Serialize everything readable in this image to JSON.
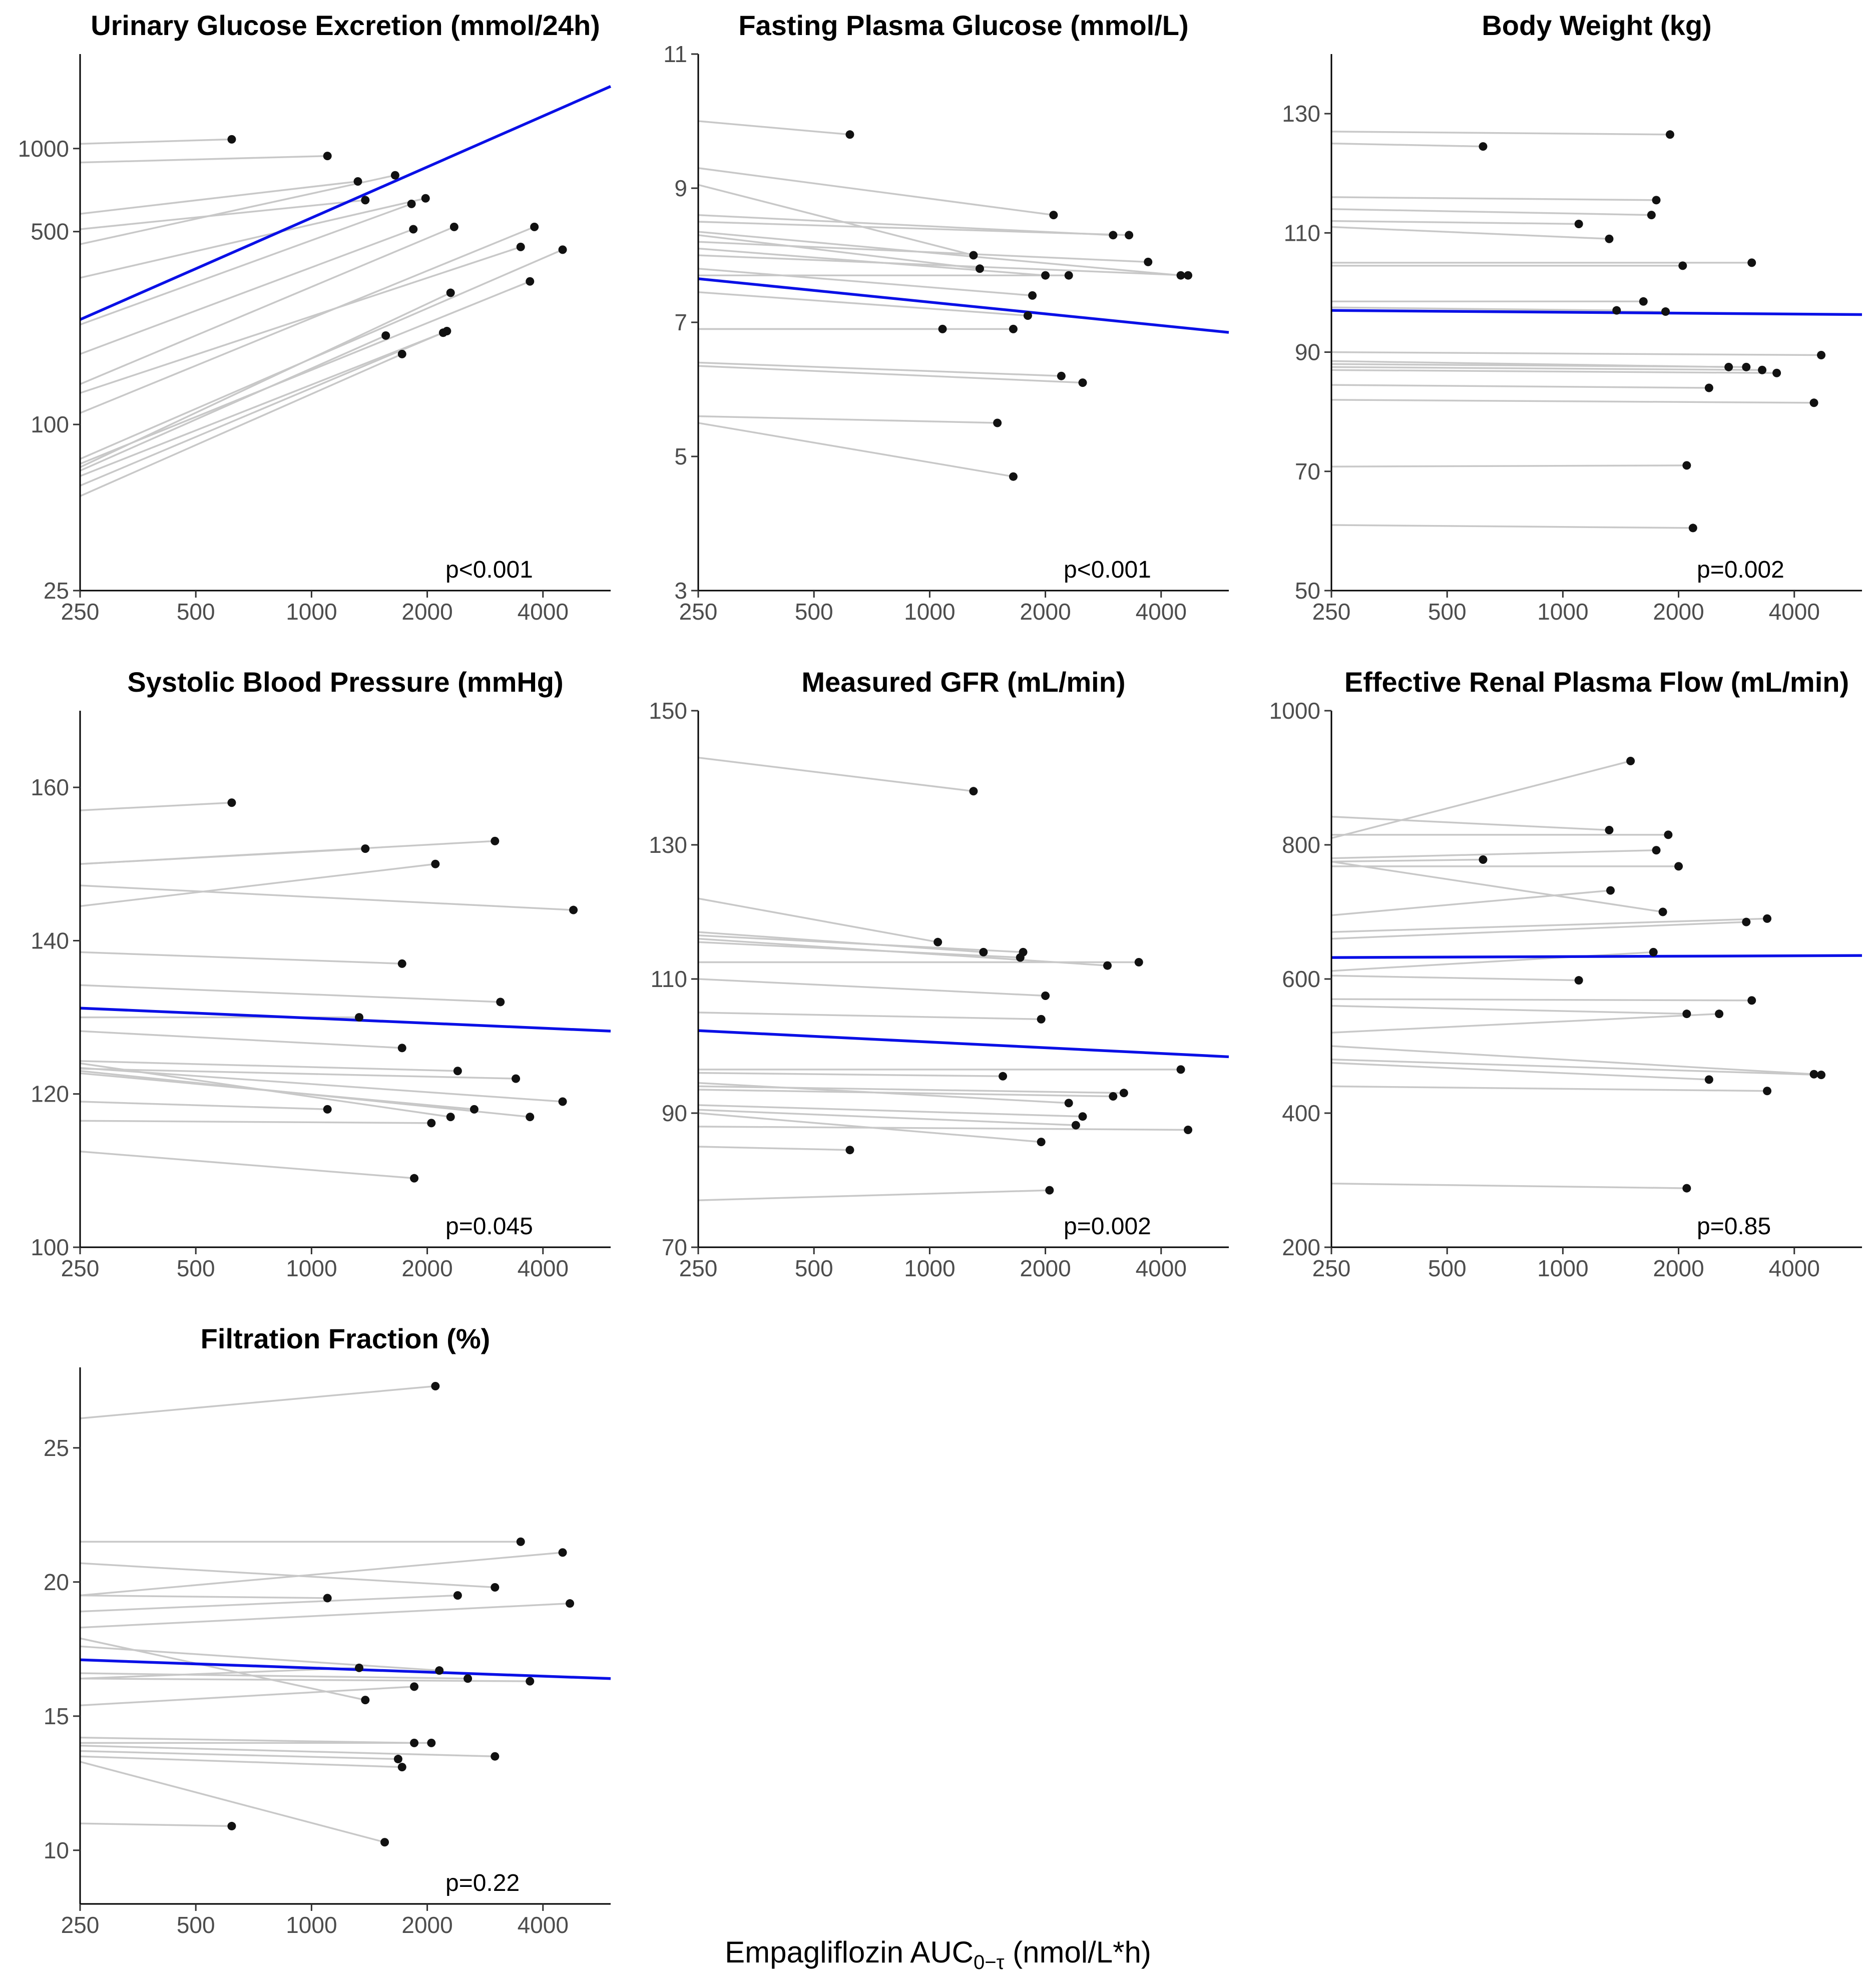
{
  "x_axis_label": {
    "prefix": "Empagliflozin AUC",
    "subscript": "0−τ",
    "suffix": " (nmol/L*h)"
  },
  "colors": {
    "regression": "#0a10e6",
    "paired_line": "#c8c8c8",
    "point": "#111111"
  },
  "chart_data": [
    {
      "type": "scatter",
      "title": "Urinary Glucose Excretion (mmol/24h)",
      "y_scale": "log",
      "ylim": [
        25,
        2200
      ],
      "yticks": [
        25,
        100,
        500,
        1000
      ],
      "xlim": [
        250,
        6000
      ],
      "xticks": [
        250,
        500,
        1000,
        2000,
        4000
      ],
      "p_value": "p<0.001",
      "regression": [
        [
          250,
          240
        ],
        [
          6000,
          1680
        ]
      ],
      "pairs": [
        [
          1040,
          620,
          1080
        ],
        [
          890,
          1100,
          940
        ],
        [
          580,
          1320,
          760
        ],
        [
          450,
          1650,
          800
        ],
        [
          510,
          1380,
          650
        ],
        [
          340,
          1980,
          660
        ],
        [
          230,
          1820,
          630
        ],
        [
          180,
          1840,
          510
        ],
        [
          140,
          2350,
          520
        ],
        [
          110,
          3800,
          520
        ],
        [
          130,
          3500,
          440
        ],
        [
          75,
          4500,
          430
        ],
        [
          72,
          3700,
          330
        ],
        [
          70,
          2300,
          300
        ],
        [
          68,
          1560,
          210
        ],
        [
          65,
          2200,
          215
        ],
        [
          60,
          2250,
          218
        ],
        [
          55,
          1720,
          180
        ]
      ]
    },
    {
      "type": "scatter",
      "title": "Fasting Plasma Glucose (mmol/L)",
      "y_scale": "linear",
      "ylim": [
        3,
        11
      ],
      "yticks": [
        3,
        5,
        7,
        9,
        11
      ],
      "xlim": [
        250,
        6000
      ],
      "xticks": [
        250,
        500,
        1000,
        2000,
        4000
      ],
      "p_value": "p<0.001",
      "regression": [
        [
          250,
          7.65
        ],
        [
          6000,
          6.85
        ]
      ],
      "pairs": [
        [
          10.0,
          620,
          9.8
        ],
        [
          9.3,
          2100,
          8.6
        ],
        [
          8.6,
          3000,
          8.3
        ],
        [
          8.5,
          3300,
          8.3
        ],
        [
          9.05,
          1300,
          8.0
        ],
        [
          8.3,
          1350,
          7.8
        ],
        [
          8.2,
          3700,
          7.9
        ],
        [
          8.1,
          2000,
          7.7
        ],
        [
          7.7,
          2300,
          7.7
        ],
        [
          8.35,
          4500,
          7.7
        ],
        [
          8.0,
          4700,
          7.7
        ],
        [
          7.8,
          1850,
          7.4
        ],
        [
          7.45,
          1800,
          7.1
        ],
        [
          6.9,
          1080,
          6.9
        ],
        [
          6.9,
          1650,
          6.9
        ],
        [
          6.4,
          2200,
          6.2
        ],
        [
          6.35,
          2500,
          6.1
        ],
        [
          5.6,
          1500,
          5.5
        ],
        [
          5.5,
          1650,
          4.7
        ]
      ]
    },
    {
      "type": "scatter",
      "title": "Body Weight (kg)",
      "y_scale": "linear",
      "ylim": [
        50,
        140
      ],
      "yticks": [
        50,
        70,
        90,
        110,
        130
      ],
      "xlim": [
        250,
        6000
      ],
      "xticks": [
        250,
        500,
        1000,
        2000,
        4000
      ],
      "p_value": "p=0.002",
      "regression": [
        [
          250,
          97.0
        ],
        [
          6000,
          96.3
        ]
      ],
      "pairs": [
        [
          127,
          1900,
          126.5
        ],
        [
          125,
          620,
          124.5
        ],
        [
          116,
          1750,
          115.5
        ],
        [
          114,
          1700,
          113
        ],
        [
          112,
          1100,
          111.5
        ],
        [
          111,
          1320,
          109
        ],
        [
          105,
          3100,
          105
        ],
        [
          104.5,
          2050,
          104.5
        ],
        [
          98.5,
          1620,
          98.5
        ],
        [
          97.5,
          1380,
          97
        ],
        [
          97,
          1850,
          96.8
        ],
        [
          90,
          4700,
          89.5
        ],
        [
          88.5,
          2700,
          87.5
        ],
        [
          88,
          3000,
          87.5
        ],
        [
          87.5,
          3300,
          87
        ],
        [
          87,
          3600,
          86.5
        ],
        [
          84.5,
          2400,
          84
        ],
        [
          82,
          4500,
          81.5
        ],
        [
          70.8,
          2100,
          71
        ],
        [
          61,
          2180,
          60.5
        ]
      ]
    },
    {
      "type": "scatter",
      "title": "Systolic Blood Pressure (mmHg)",
      "y_scale": "linear",
      "ylim": [
        100,
        170
      ],
      "yticks": [
        100,
        120,
        140,
        160
      ],
      "xlim": [
        250,
        6000
      ],
      "xticks": [
        250,
        500,
        1000,
        2000,
        4000
      ],
      "p_value": "p=0.045",
      "regression": [
        [
          250,
          131.2
        ],
        [
          6000,
          128.2
        ]
      ],
      "pairs": [
        [
          157,
          620,
          158
        ],
        [
          150,
          1380,
          152
        ],
        [
          150,
          3000,
          153
        ],
        [
          144.5,
          2100,
          150
        ],
        [
          147.2,
          4800,
          144
        ],
        [
          138.5,
          1720,
          137
        ],
        [
          134.2,
          3100,
          132
        ],
        [
          130,
          1330,
          130
        ],
        [
          128.2,
          1720,
          126
        ],
        [
          124.3,
          2400,
          123
        ],
        [
          123.3,
          3400,
          122
        ],
        [
          123.4,
          4500,
          119
        ],
        [
          124,
          2300,
          117
        ],
        [
          123,
          3700,
          117
        ],
        [
          122.7,
          2650,
          118
        ],
        [
          119,
          1100,
          118
        ],
        [
          116.5,
          2050,
          116.2
        ],
        [
          112.5,
          1850,
          109
        ]
      ]
    },
    {
      "type": "scatter",
      "title": "Measured GFR (mL/min)",
      "y_scale": "linear",
      "ylim": [
        70,
        150
      ],
      "yticks": [
        70,
        90,
        110,
        130,
        150
      ],
      "xlim": [
        250,
        6000
      ],
      "xticks": [
        250,
        500,
        1000,
        2000,
        4000
      ],
      "p_value": "p=0.002",
      "regression": [
        [
          250,
          102.3
        ],
        [
          6000,
          98.4
        ]
      ],
      "pairs": [
        [
          143,
          1300,
          138
        ],
        [
          122,
          1050,
          115.5
        ],
        [
          117,
          1380,
          114
        ],
        [
          116.5,
          1750,
          114
        ],
        [
          116,
          2900,
          112
        ],
        [
          115.5,
          1720,
          113.2
        ],
        [
          112.5,
          3500,
          112.5
        ],
        [
          110,
          2000,
          107.5
        ],
        [
          105,
          1950,
          104
        ],
        [
          96.5,
          4500,
          96.5
        ],
        [
          96,
          1550,
          95.5
        ],
        [
          94.5,
          2300,
          91.5
        ],
        [
          94,
          3200,
          93
        ],
        [
          93.5,
          3000,
          92.5
        ],
        [
          91.2,
          2500,
          89.5
        ],
        [
          90.5,
          2400,
          88.2
        ],
        [
          90,
          1950,
          85.7
        ],
        [
          88,
          4700,
          87.5
        ],
        [
          85,
          620,
          84.5
        ],
        [
          77,
          2050,
          78.5
        ]
      ]
    },
    {
      "type": "scatter",
      "title": "Effective Renal Plasma Flow (mL/min)",
      "y_scale": "linear",
      "ylim": [
        200,
        1000
      ],
      "yticks": [
        200,
        400,
        600,
        800,
        1000
      ],
      "xlim": [
        250,
        6000
      ],
      "xticks": [
        250,
        500,
        1000,
        2000,
        4000
      ],
      "p_value": "p=0.85",
      "regression": [
        [
          250,
          632
        ],
        [
          6000,
          635
        ]
      ],
      "pairs": [
        [
          810,
          1500,
          925
        ],
        [
          842,
          1320,
          822
        ],
        [
          815,
          1880,
          815
        ],
        [
          780,
          1750,
          792
        ],
        [
          775,
          620,
          778
        ],
        [
          768,
          2000,
          768
        ],
        [
          695,
          1330,
          732
        ],
        [
          775,
          1820,
          700
        ],
        [
          660,
          3000,
          685
        ],
        [
          670,
          3400,
          690
        ],
        [
          612,
          1720,
          640
        ],
        [
          605,
          1100,
          598
        ],
        [
          570,
          3100,
          568
        ],
        [
          560,
          2100,
          548
        ],
        [
          520,
          2550,
          548
        ],
        [
          500,
          4500,
          458
        ],
        [
          480,
          4700,
          457
        ],
        [
          475,
          2400,
          450
        ],
        [
          440,
          3400,
          433
        ],
        [
          295,
          2100,
          288
        ]
      ]
    },
    {
      "type": "scatter",
      "title": "Filtration Fraction (%)",
      "y_scale": "linear",
      "ylim": [
        8,
        28
      ],
      "yticks": [
        10,
        15,
        20,
        25
      ],
      "xlim": [
        250,
        6000
      ],
      "xticks": [
        250,
        500,
        1000,
        2000,
        4000
      ],
      "p_value": "p=0.22",
      "regression": [
        [
          250,
          17.1
        ],
        [
          6000,
          16.4
        ]
      ],
      "pairs": [
        [
          26.1,
          2100,
          27.3
        ],
        [
          21.5,
          3500,
          21.5
        ],
        [
          19.5,
          4500,
          21.1
        ],
        [
          20.7,
          3000,
          19.8
        ],
        [
          19.5,
          1100,
          19.4
        ],
        [
          18.9,
          2400,
          19.5
        ],
        [
          18.3,
          4700,
          19.2
        ],
        [
          16.4,
          1330,
          16.8
        ],
        [
          17.6,
          2150,
          16.7
        ],
        [
          16.6,
          2550,
          16.4
        ],
        [
          17.9,
          1380,
          15.6
        ],
        [
          16.4,
          3700,
          16.3
        ],
        [
          15.4,
          1850,
          16.1
        ],
        [
          14.2,
          1850,
          14.0
        ],
        [
          14.0,
          2050,
          14.0
        ],
        [
          13.7,
          1680,
          13.4
        ],
        [
          13.5,
          1720,
          13.1
        ],
        [
          13.9,
          3000,
          13.5
        ],
        [
          11.0,
          620,
          10.9
        ],
        [
          13.3,
          1550,
          10.3
        ]
      ]
    }
  ]
}
